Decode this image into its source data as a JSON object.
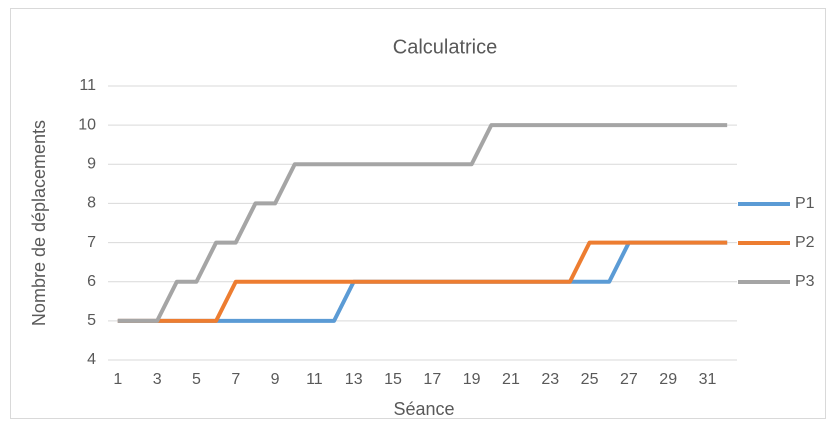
{
  "chart_data": {
    "type": "line",
    "title": "Calculatrice",
    "xlabel": "Séance",
    "ylabel": "Nombre de déplacements",
    "categories": [
      1,
      null,
      3,
      null,
      5,
      null,
      7,
      null,
      9,
      null,
      11,
      null,
      13,
      null,
      15,
      null,
      17,
      null,
      19,
      null,
      21,
      null,
      23,
      null,
      25,
      null,
      27,
      null,
      29,
      null,
      31,
      null
    ],
    "series": [
      {
        "name": "P1",
        "color": "#5B9BD5",
        "values": [
          5,
          5,
          5,
          5,
          5,
          5,
          5,
          5,
          5,
          5,
          5,
          5,
          6,
          6,
          6,
          6,
          6,
          6,
          6,
          6,
          6,
          6,
          6,
          6,
          6,
          6,
          7,
          7,
          7,
          7,
          7,
          7
        ]
      },
      {
        "name": "P2",
        "color": "#ED7D31",
        "values": [
          5,
          5,
          5,
          5,
          5,
          5,
          6,
          6,
          6,
          6,
          6,
          6,
          6,
          6,
          6,
          6,
          6,
          6,
          6,
          6,
          6,
          6,
          6,
          6,
          7,
          7,
          7,
          7,
          7,
          7,
          7,
          7
        ]
      },
      {
        "name": "P3",
        "color": "#A5A5A5",
        "values": [
          5,
          5,
          5,
          6,
          6,
          7,
          7,
          8,
          8,
          9,
          9,
          9,
          9,
          9,
          9,
          9,
          9,
          9,
          9,
          10,
          10,
          10,
          10,
          10,
          10,
          10,
          10,
          10,
          10,
          10,
          10,
          10
        ]
      }
    ],
    "ylim": [
      4,
      11
    ],
    "yticks": [
      4,
      5,
      6,
      7,
      8,
      9,
      10,
      11
    ],
    "grid": true,
    "legend": "right"
  }
}
